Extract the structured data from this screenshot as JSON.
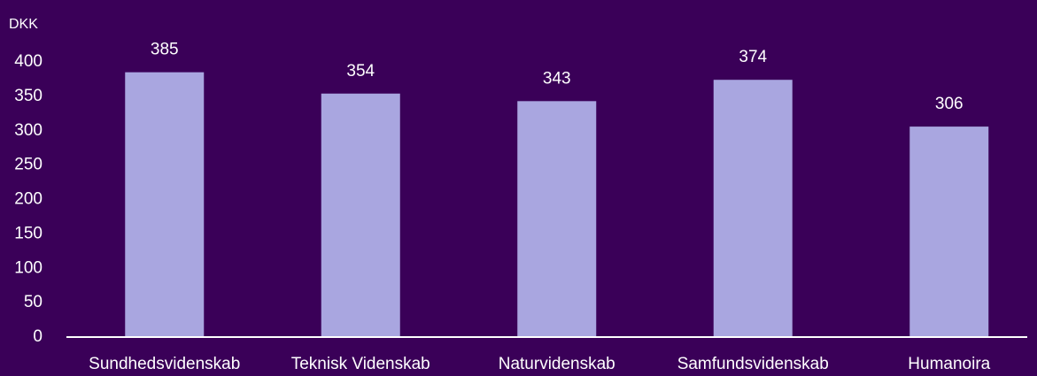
{
  "chart_data": {
    "type": "bar",
    "y_label": "DKK",
    "categories": [
      "Sundhedsvidenskab",
      "Teknisk Videnskab",
      "Naturvidenskab",
      "Samfundsvidenskab",
      "Humanoira"
    ],
    "values": [
      385,
      354,
      343,
      374,
      306
    ],
    "color": "#a9a6e0",
    "ylim": [
      0,
      400
    ],
    "yticks": [
      0,
      50,
      100,
      150,
      200,
      250,
      300,
      350,
      400
    ],
    "grid": false
  }
}
